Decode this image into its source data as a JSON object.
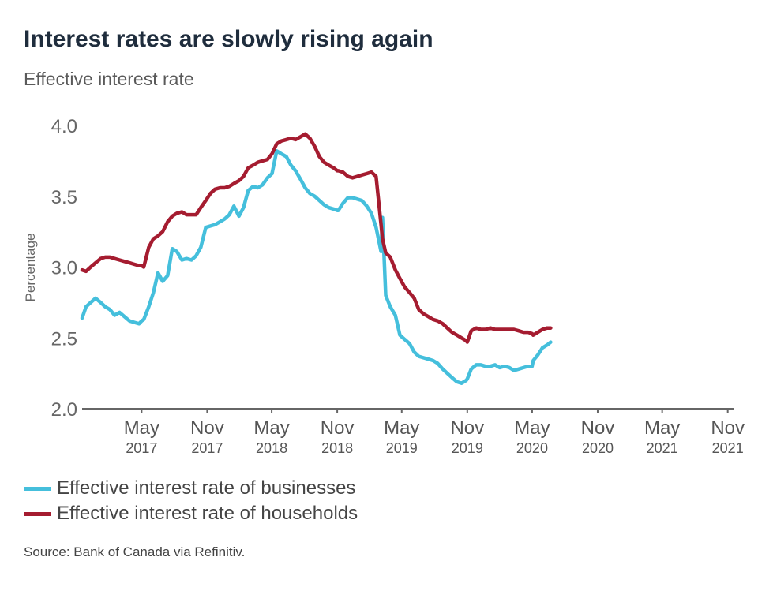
{
  "header": {
    "title": "Interest rates are slowly rising again",
    "subtitle": "Effective interest rate"
  },
  "source": "Source: Bank of Canada via Refinitiv.",
  "chart_data": {
    "type": "line",
    "title": "Interest rates are slowly rising again",
    "subtitle": "Effective interest rate",
    "ylabel": "Percentage",
    "xlabel": "",
    "ylim": [
      2.0,
      4.0
    ],
    "yticks": [
      2.0,
      2.5,
      3.0,
      3.5,
      4.0
    ],
    "ytick_labels": [
      "2.0",
      "2.5",
      "3.0",
      "3.5",
      "4.0"
    ],
    "xlim": [
      "2016-11-15",
      "2021-11-15"
    ],
    "xticks": [
      {
        "x": "2017-05-01",
        "month": "May",
        "year": "2017"
      },
      {
        "x": "2017-11-01",
        "month": "Nov",
        "year": "2017"
      },
      {
        "x": "2018-05-01",
        "month": "May",
        "year": "2018"
      },
      {
        "x": "2018-11-01",
        "month": "Nov",
        "year": "2018"
      },
      {
        "x": "2019-05-01",
        "month": "May",
        "year": "2019"
      },
      {
        "x": "2019-11-01",
        "month": "Nov",
        "year": "2019"
      },
      {
        "x": "2020-05-01",
        "month": "May",
        "year": "2020"
      },
      {
        "x": "2020-11-01",
        "month": "Nov",
        "year": "2020"
      },
      {
        "x": "2021-05-01",
        "month": "May",
        "year": "2021"
      },
      {
        "x": "2021-11-01",
        "month": "Nov",
        "year": "2021"
      }
    ],
    "grid": false,
    "legend_position": "bottom-left",
    "series": [
      {
        "name": "Effective interest rate of businesses",
        "color": "#45bfdc",
        "points": [
          [
            "2016-11-15",
            2.64
          ],
          [
            "2016-11-26",
            2.72
          ],
          [
            "2016-12-09",
            2.75
          ],
          [
            "2016-12-23",
            2.78
          ],
          [
            "2017-01-06",
            2.75
          ],
          [
            "2017-01-19",
            2.72
          ],
          [
            "2017-02-01",
            2.7
          ],
          [
            "2017-02-14",
            2.66
          ],
          [
            "2017-02-28",
            2.68
          ],
          [
            "2017-03-14",
            2.65
          ],
          [
            "2017-03-28",
            2.62
          ],
          [
            "2017-04-10",
            2.61
          ],
          [
            "2017-04-24",
            2.6
          ],
          [
            "2017-05-01",
            2.62
          ],
          [
            "2017-05-07",
            2.63
          ],
          [
            "2017-05-21",
            2.72
          ],
          [
            "2017-06-03",
            2.82
          ],
          [
            "2017-06-16",
            2.96
          ],
          [
            "2017-06-29",
            2.9
          ],
          [
            "2017-07-13",
            2.94
          ],
          [
            "2017-07-26",
            3.13
          ],
          [
            "2017-08-08",
            3.11
          ],
          [
            "2017-08-22",
            3.05
          ],
          [
            "2017-09-04",
            3.06
          ],
          [
            "2017-09-18",
            3.05
          ],
          [
            "2017-10-01",
            3.08
          ],
          [
            "2017-10-14",
            3.14
          ],
          [
            "2017-10-28",
            3.28
          ],
          [
            "2017-11-10",
            3.29
          ],
          [
            "2017-11-23",
            3.3
          ],
          [
            "2017-12-07",
            3.32
          ],
          [
            "2017-12-20",
            3.34
          ],
          [
            "2018-01-02",
            3.37
          ],
          [
            "2018-01-15",
            3.43
          ],
          [
            "2018-01-29",
            3.36
          ],
          [
            "2018-02-11",
            3.42
          ],
          [
            "2018-02-24",
            3.54
          ],
          [
            "2018-03-10",
            3.57
          ],
          [
            "2018-03-23",
            3.56
          ],
          [
            "2018-04-05",
            3.58
          ],
          [
            "2018-04-19",
            3.63
          ],
          [
            "2018-05-02",
            3.66
          ],
          [
            "2018-05-15",
            3.82
          ],
          [
            "2018-05-28",
            3.8
          ],
          [
            "2018-06-11",
            3.78
          ],
          [
            "2018-06-24",
            3.72
          ],
          [
            "2018-07-07",
            3.68
          ],
          [
            "2018-07-21",
            3.62
          ],
          [
            "2018-08-03",
            3.56
          ],
          [
            "2018-08-16",
            3.52
          ],
          [
            "2018-08-30",
            3.5
          ],
          [
            "2018-09-12",
            3.47
          ],
          [
            "2018-09-25",
            3.44
          ],
          [
            "2018-10-08",
            3.42
          ],
          [
            "2018-10-22",
            3.41
          ],
          [
            "2018-11-01",
            3.4
          ],
          [
            "2018-11-04",
            3.4
          ],
          [
            "2018-11-17",
            3.45
          ],
          [
            "2018-12-01",
            3.49
          ],
          [
            "2018-12-14",
            3.49
          ],
          [
            "2018-12-27",
            3.48
          ],
          [
            "2019-01-09",
            3.47
          ],
          [
            "2019-01-23",
            3.43
          ],
          [
            "2019-02-05",
            3.38
          ],
          [
            "2019-02-18",
            3.28
          ],
          [
            "2019-03-04",
            3.11
          ],
          [
            "2019-03-08",
            3.35
          ],
          [
            "2019-03-17",
            2.8
          ],
          [
            "2019-03-30",
            2.72
          ],
          [
            "2019-04-13",
            2.66
          ],
          [
            "2019-04-26",
            2.52
          ],
          [
            "2019-05-09",
            2.49
          ],
          [
            "2019-05-23",
            2.46
          ],
          [
            "2019-06-05",
            2.4
          ],
          [
            "2019-06-18",
            2.37
          ],
          [
            "2019-07-01",
            2.36
          ],
          [
            "2019-07-15",
            2.35
          ],
          [
            "2019-07-28",
            2.34
          ],
          [
            "2019-08-10",
            2.32
          ],
          [
            "2019-08-24",
            2.28
          ],
          [
            "2019-09-06",
            2.25
          ],
          [
            "2019-09-19",
            2.22
          ],
          [
            "2019-10-03",
            2.19
          ],
          [
            "2019-10-16",
            2.18
          ],
          [
            "2019-10-29",
            2.2
          ],
          [
            "2019-11-01",
            2.21
          ],
          [
            "2019-11-12",
            2.28
          ],
          [
            "2019-11-26",
            2.31
          ],
          [
            "2019-12-09",
            2.31
          ],
          [
            "2019-12-22",
            2.3
          ],
          [
            "2020-01-05",
            2.3
          ],
          [
            "2020-01-18",
            2.31
          ],
          [
            "2020-01-31",
            2.29
          ],
          [
            "2020-02-14",
            2.3
          ],
          [
            "2020-02-27",
            2.29
          ],
          [
            "2020-03-11",
            2.27
          ],
          [
            "2020-03-25",
            2.28
          ],
          [
            "2020-04-07",
            2.29
          ],
          [
            "2020-04-20",
            2.3
          ],
          [
            "2020-05-01",
            2.3
          ],
          [
            "2020-05-04",
            2.34
          ],
          [
            "2020-05-17",
            2.38
          ],
          [
            "2020-05-30",
            2.43
          ],
          [
            "2020-06-12",
            2.45
          ],
          [
            "2020-06-22",
            2.47
          ]
        ]
      },
      {
        "name": "Effective interest rate of households",
        "color": "#a51c30",
        "points": [
          [
            "2016-11-15",
            2.98
          ],
          [
            "2016-11-26",
            2.97
          ],
          [
            "2016-12-09",
            3.0
          ],
          [
            "2016-12-23",
            3.03
          ],
          [
            "2017-01-06",
            3.06
          ],
          [
            "2017-01-19",
            3.07
          ],
          [
            "2017-02-01",
            3.07
          ],
          [
            "2017-02-14",
            3.06
          ],
          [
            "2017-02-28",
            3.05
          ],
          [
            "2017-03-14",
            3.04
          ],
          [
            "2017-03-28",
            3.03
          ],
          [
            "2017-04-10",
            3.02
          ],
          [
            "2017-04-24",
            3.01
          ],
          [
            "2017-05-01",
            3.01
          ],
          [
            "2017-05-07",
            3.0
          ],
          [
            "2017-05-21",
            3.14
          ],
          [
            "2017-06-03",
            3.2
          ],
          [
            "2017-06-16",
            3.22
          ],
          [
            "2017-06-29",
            3.25
          ],
          [
            "2017-07-13",
            3.32
          ],
          [
            "2017-07-26",
            3.36
          ],
          [
            "2017-08-08",
            3.38
          ],
          [
            "2017-08-22",
            3.39
          ],
          [
            "2017-09-04",
            3.37
          ],
          [
            "2017-09-18",
            3.37
          ],
          [
            "2017-10-01",
            3.37
          ],
          [
            "2017-10-14",
            3.42
          ],
          [
            "2017-10-28",
            3.47
          ],
          [
            "2017-11-10",
            3.52
          ],
          [
            "2017-11-23",
            3.55
          ],
          [
            "2017-12-07",
            3.56
          ],
          [
            "2017-12-20",
            3.56
          ],
          [
            "2018-01-02",
            3.57
          ],
          [
            "2018-01-15",
            3.59
          ],
          [
            "2018-01-29",
            3.61
          ],
          [
            "2018-02-11",
            3.64
          ],
          [
            "2018-02-24",
            3.7
          ],
          [
            "2018-03-10",
            3.72
          ],
          [
            "2018-03-23",
            3.74
          ],
          [
            "2018-04-05",
            3.75
          ],
          [
            "2018-04-19",
            3.76
          ],
          [
            "2018-05-02",
            3.8
          ],
          [
            "2018-05-15",
            3.87
          ],
          [
            "2018-05-28",
            3.89
          ],
          [
            "2018-06-11",
            3.9
          ],
          [
            "2018-06-24",
            3.91
          ],
          [
            "2018-07-07",
            3.9
          ],
          [
            "2018-07-21",
            3.92
          ],
          [
            "2018-08-03",
            3.94
          ],
          [
            "2018-08-16",
            3.91
          ],
          [
            "2018-08-30",
            3.85
          ],
          [
            "2018-09-12",
            3.78
          ],
          [
            "2018-09-25",
            3.74
          ],
          [
            "2018-10-08",
            3.72
          ],
          [
            "2018-10-22",
            3.7
          ],
          [
            "2018-11-01",
            3.68
          ],
          [
            "2018-11-04",
            3.68
          ],
          [
            "2018-11-17",
            3.67
          ],
          [
            "2018-12-01",
            3.64
          ],
          [
            "2018-12-14",
            3.63
          ],
          [
            "2018-12-27",
            3.64
          ],
          [
            "2019-01-09",
            3.65
          ],
          [
            "2019-01-23",
            3.66
          ],
          [
            "2019-02-05",
            3.67
          ],
          [
            "2019-02-18",
            3.64
          ],
          [
            "2019-03-04",
            3.3
          ],
          [
            "2019-03-08",
            3.2
          ],
          [
            "2019-03-17",
            3.1
          ],
          [
            "2019-03-30",
            3.07
          ],
          [
            "2019-04-13",
            2.98
          ],
          [
            "2019-04-26",
            2.92
          ],
          [
            "2019-05-09",
            2.86
          ],
          [
            "2019-05-23",
            2.82
          ],
          [
            "2019-06-05",
            2.78
          ],
          [
            "2019-06-18",
            2.7
          ],
          [
            "2019-07-01",
            2.67
          ],
          [
            "2019-07-15",
            2.65
          ],
          [
            "2019-07-28",
            2.63
          ],
          [
            "2019-08-10",
            2.62
          ],
          [
            "2019-08-24",
            2.6
          ],
          [
            "2019-09-06",
            2.57
          ],
          [
            "2019-09-19",
            2.54
          ],
          [
            "2019-10-03",
            2.52
          ],
          [
            "2019-10-16",
            2.5
          ],
          [
            "2019-10-29",
            2.48
          ],
          [
            "2019-11-01",
            2.47
          ],
          [
            "2019-11-12",
            2.55
          ],
          [
            "2019-11-26",
            2.57
          ],
          [
            "2019-12-09",
            2.56
          ],
          [
            "2019-12-22",
            2.56
          ],
          [
            "2020-01-05",
            2.57
          ],
          [
            "2020-01-18",
            2.56
          ],
          [
            "2020-01-31",
            2.56
          ],
          [
            "2020-02-14",
            2.56
          ],
          [
            "2020-02-27",
            2.56
          ],
          [
            "2020-03-11",
            2.56
          ],
          [
            "2020-03-25",
            2.55
          ],
          [
            "2020-04-07",
            2.54
          ],
          [
            "2020-04-20",
            2.54
          ],
          [
            "2020-05-01",
            2.53
          ],
          [
            "2020-05-04",
            2.52
          ],
          [
            "2020-05-17",
            2.54
          ],
          [
            "2020-05-30",
            2.56
          ],
          [
            "2020-06-12",
            2.57
          ],
          [
            "2020-06-22",
            2.57
          ]
        ]
      }
    ]
  }
}
